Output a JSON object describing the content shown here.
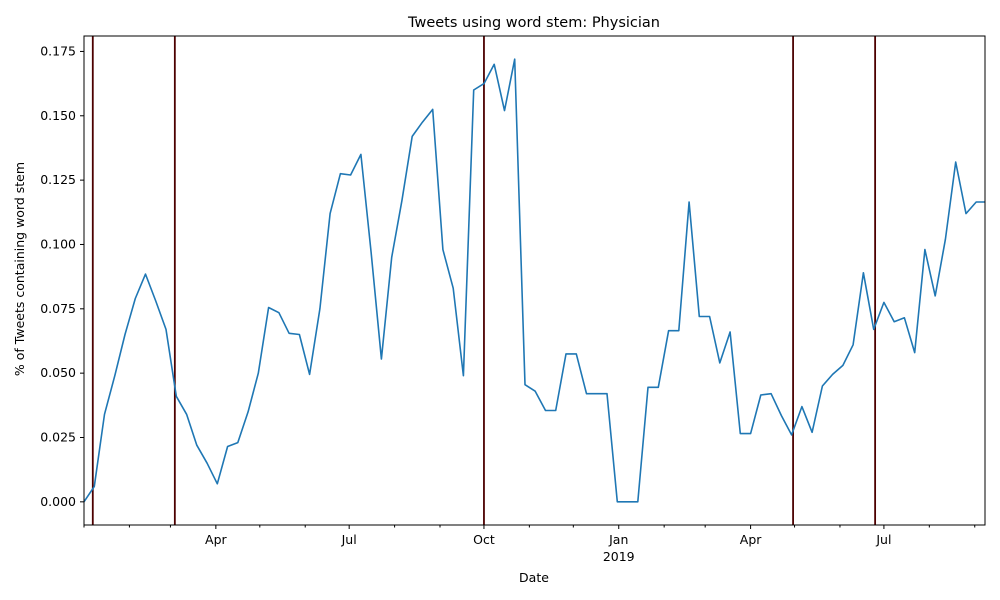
{
  "chart_data": {
    "type": "line",
    "title": "Tweets using word stem: Physician",
    "xlabel": "Date",
    "ylabel": "% of Tweets containing word stem",
    "ylim": [
      -0.009,
      0.181
    ],
    "xlim": [
      "2018-01-01",
      "2019-09-08"
    ],
    "grid": false,
    "legend": "none",
    "colors": {
      "line": "#1f77b4",
      "vline": "#4d0000",
      "axis": "#000000"
    },
    "y_ticks": [
      0.0,
      0.025,
      0.05,
      0.075,
      0.1,
      0.125,
      0.15,
      0.175
    ],
    "y_tick_labels": [
      "0.000",
      "0.025",
      "0.050",
      "0.075",
      "0.100",
      "0.125",
      "0.150",
      "0.175"
    ],
    "x_major_ticks": [
      {
        "date": "2018-04-01",
        "label": "Apr"
      },
      {
        "date": "2018-07-01",
        "label": "Jul"
      },
      {
        "date": "2018-10-01",
        "label": "Oct"
      },
      {
        "date": "2019-01-01",
        "label": "Jan"
      },
      {
        "date": "2019-04-01",
        "label": "Apr"
      },
      {
        "date": "2019-07-01",
        "label": "Jul"
      }
    ],
    "x_year_label": {
      "date": "2019-01-01",
      "label": "2019"
    },
    "x_minor_ticks": [
      "2018-01-01",
      "2018-02-01",
      "2018-03-01",
      "2018-05-01",
      "2018-06-01",
      "2018-08-01",
      "2018-09-01",
      "2018-11-01",
      "2018-12-01",
      "2019-02-01",
      "2019-03-01",
      "2019-05-01",
      "2019-06-01",
      "2019-08-01",
      "2019-09-01"
    ],
    "vertical_lines": [
      "2018-01-07",
      "2018-03-04",
      "2018-10-01",
      "2019-04-30",
      "2019-06-25"
    ],
    "series": [
      {
        "name": "",
        "points": [
          [
            "2018-01-01",
            0.0
          ],
          [
            "2018-01-08",
            0.006
          ],
          [
            "2018-01-15",
            0.034
          ],
          [
            "2018-01-22",
            0.049
          ],
          [
            "2018-01-29",
            0.065
          ],
          [
            "2018-02-05",
            0.079
          ],
          [
            "2018-02-12",
            0.0885
          ],
          [
            "2018-02-19",
            0.078
          ],
          [
            "2018-02-26",
            0.067
          ],
          [
            "2018-03-05",
            0.041
          ],
          [
            "2018-03-12",
            0.034
          ],
          [
            "2018-03-19",
            0.022
          ],
          [
            "2018-03-26",
            0.015
          ],
          [
            "2018-04-02",
            0.007
          ],
          [
            "2018-04-09",
            0.0215
          ],
          [
            "2018-04-16",
            0.023
          ],
          [
            "2018-04-23",
            0.035
          ],
          [
            "2018-04-30",
            0.05
          ],
          [
            "2018-05-07",
            0.0755
          ],
          [
            "2018-05-14",
            0.0735
          ],
          [
            "2018-05-21",
            0.0655
          ],
          [
            "2018-05-28",
            0.065
          ],
          [
            "2018-06-04",
            0.0495
          ],
          [
            "2018-06-11",
            0.075
          ],
          [
            "2018-06-18",
            0.112
          ],
          [
            "2018-06-25",
            0.1275
          ],
          [
            "2018-07-02",
            0.127
          ],
          [
            "2018-07-09",
            0.135
          ],
          [
            "2018-07-16",
            0.097
          ],
          [
            "2018-07-23",
            0.0555
          ],
          [
            "2018-07-30",
            0.095
          ],
          [
            "2018-08-06",
            0.117
          ],
          [
            "2018-08-13",
            0.142
          ],
          [
            "2018-08-20",
            0.1475
          ],
          [
            "2018-08-27",
            0.1525
          ],
          [
            "2018-09-03",
            0.098
          ],
          [
            "2018-09-10",
            0.083
          ],
          [
            "2018-09-17",
            0.049
          ],
          [
            "2018-09-24",
            0.16
          ],
          [
            "2018-10-01",
            0.1625
          ],
          [
            "2018-10-08",
            0.17
          ],
          [
            "2018-10-15",
            0.152
          ],
          [
            "2018-10-22",
            0.172
          ],
          [
            "2018-10-29",
            0.0455
          ],
          [
            "2018-11-05",
            0.043
          ],
          [
            "2018-11-12",
            0.0355
          ],
          [
            "2018-11-19",
            0.0355
          ],
          [
            "2018-11-26",
            0.0575
          ],
          [
            "2018-12-03",
            0.0575
          ],
          [
            "2018-12-10",
            0.042
          ],
          [
            "2018-12-17",
            0.042
          ],
          [
            "2018-12-24",
            0.042
          ],
          [
            "2018-12-31",
            0.0
          ],
          [
            "2019-01-07",
            0.0
          ],
          [
            "2019-01-14",
            0.0
          ],
          [
            "2019-01-21",
            0.0445
          ],
          [
            "2019-01-28",
            0.0445
          ],
          [
            "2019-02-04",
            0.0665
          ],
          [
            "2019-02-11",
            0.0665
          ],
          [
            "2019-02-18",
            0.1165
          ],
          [
            "2019-02-25",
            0.072
          ],
          [
            "2019-03-04",
            0.072
          ],
          [
            "2019-03-11",
            0.054
          ],
          [
            "2019-03-18",
            0.066
          ],
          [
            "2019-03-25",
            0.0265
          ],
          [
            "2019-04-01",
            0.0265
          ],
          [
            "2019-04-08",
            0.0415
          ],
          [
            "2019-04-15",
            0.042
          ],
          [
            "2019-04-22",
            0.0335
          ],
          [
            "2019-04-29",
            0.026
          ],
          [
            "2019-05-06",
            0.037
          ],
          [
            "2019-05-13",
            0.027
          ],
          [
            "2019-05-20",
            0.045
          ],
          [
            "2019-05-27",
            0.0495
          ],
          [
            "2019-06-03",
            0.053
          ],
          [
            "2019-06-10",
            0.061
          ],
          [
            "2019-06-17",
            0.089
          ],
          [
            "2019-06-24",
            0.067
          ],
          [
            "2019-07-01",
            0.0775
          ],
          [
            "2019-07-08",
            0.07
          ],
          [
            "2019-07-15",
            0.0715
          ],
          [
            "2019-07-22",
            0.058
          ],
          [
            "2019-07-29",
            0.098
          ],
          [
            "2019-08-05",
            0.08
          ],
          [
            "2019-08-12",
            0.102
          ],
          [
            "2019-08-19",
            0.132
          ],
          [
            "2019-08-26",
            0.112
          ],
          [
            "2019-09-02",
            0.1165
          ],
          [
            "2019-09-08",
            0.1165
          ]
        ]
      }
    ]
  }
}
